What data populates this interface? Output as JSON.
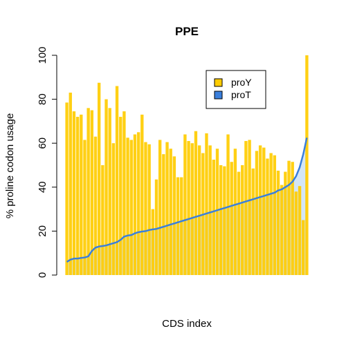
{
  "chart_data": {
    "type": "bar",
    "title": "PPE",
    "xlabel": "CDS index",
    "ylabel": "% proline codon usage",
    "ylim": [
      0,
      100
    ],
    "y_ticks": [
      "0",
      "20",
      "40",
      "60",
      "80",
      "100"
    ],
    "grid": false,
    "legend_position": "top-right",
    "series": [
      {
        "name": "proY",
        "type": "bar",
        "color": "#FFCC00",
        "values": [
          78.5,
          83.0,
          74.5,
          72.0,
          73.0,
          61.5,
          76.0,
          75.0,
          63.0,
          87.5,
          50.0,
          80.0,
          76.0,
          60.0,
          86.0,
          72.0,
          74.5,
          62.5,
          61.5,
          64.0,
          65.0,
          73.0,
          60.5,
          59.5,
          30.0,
          43.5,
          61.5,
          55.0,
          60.5,
          57.5,
          54.0,
          44.5,
          44.5,
          64.0,
          61.0,
          60.0,
          65.5,
          59.0,
          55.5,
          64.5,
          59.0,
          52.5,
          57.5,
          50.0,
          49.5,
          64.0,
          51.5,
          57.5,
          47.0,
          50.0,
          61.0,
          61.5,
          48.5,
          56.5,
          59.0,
          58.0,
          53.0,
          55.5,
          54.5,
          47.5,
          41.0,
          47.0,
          52.0,
          51.5,
          38.0,
          40.5,
          25.0,
          100.0
        ]
      },
      {
        "name": "proT",
        "type": "line",
        "color": "#3A7FDC",
        "fill": "#CFE3F5",
        "values": [
          6.0,
          7.0,
          7.5,
          7.5,
          7.8,
          8.0,
          8.5,
          11.0,
          12.5,
          13.0,
          13.2,
          13.5,
          14.0,
          14.5,
          15.0,
          16.0,
          17.5,
          18.0,
          18.2,
          19.0,
          19.5,
          19.8,
          20.0,
          20.5,
          20.8,
          21.0,
          21.5,
          22.0,
          22.5,
          23.0,
          23.5,
          24.0,
          24.5,
          25.0,
          25.5,
          26.0,
          26.5,
          27.0,
          27.5,
          28.0,
          28.5,
          29.0,
          29.5,
          30.0,
          30.5,
          31.0,
          31.5,
          32.0,
          32.5,
          33.0,
          33.5,
          34.0,
          34.5,
          35.0,
          35.5,
          36.0,
          36.5,
          37.0,
          37.5,
          38.5,
          39.0,
          40.0,
          41.0,
          42.5,
          45.0,
          49.0,
          55.0,
          62.5
        ]
      }
    ]
  }
}
